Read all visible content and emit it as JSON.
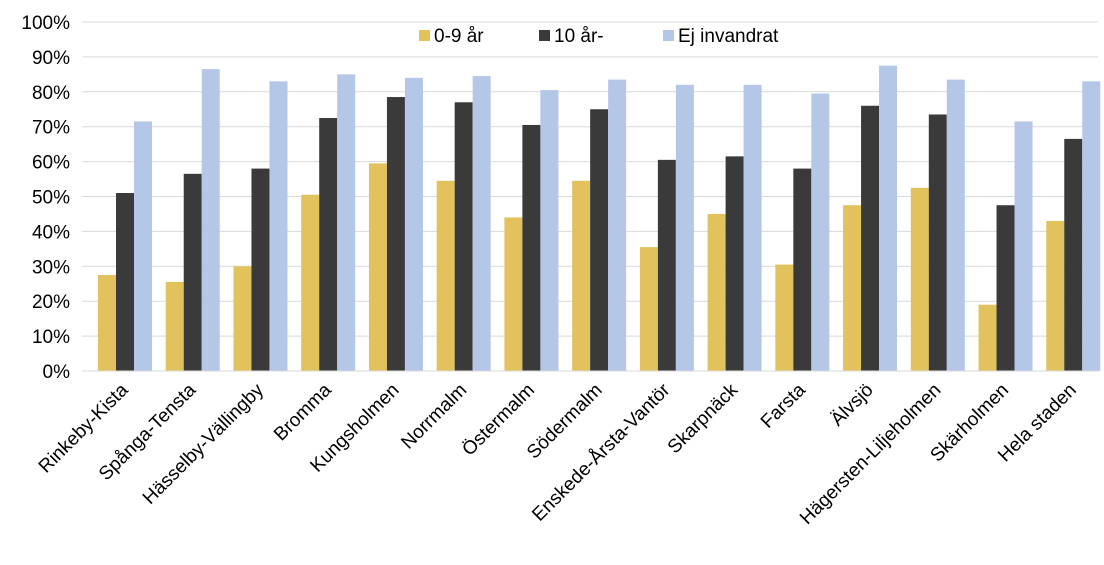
{
  "chart_data": {
    "type": "bar",
    "categories": [
      "Rinkeby-Kista",
      "Spånga-Tensta",
      "Hässelby-Vällingby",
      "Bromma",
      "Kungsholmen",
      "Norrmalm",
      "Östermalm",
      "Södermalm",
      "Enskede-Årsta-Vantör",
      "Skarpnäck",
      "Farsta",
      "Älvsjö",
      "Hägersten-Liljeholmen",
      "Skärholmen",
      "Hela staden"
    ],
    "series": [
      {
        "name": "0-9 år",
        "color": "#E2C25C",
        "values": [
          27.5,
          25.5,
          30,
          50.5,
          59.5,
          54.5,
          44,
          54.5,
          35.5,
          45,
          30.5,
          47.5,
          52.5,
          19,
          43
        ]
      },
      {
        "name": "10 år-",
        "color": "#3A3A3A",
        "values": [
          51,
          56.5,
          58,
          72.5,
          78.5,
          77,
          70.5,
          75,
          60.5,
          61.5,
          58,
          76,
          73.5,
          47.5,
          66.5
        ]
      },
      {
        "name": "Ej invandrat",
        "color": "#B4C7E7",
        "values": [
          71.5,
          86.5,
          83,
          85,
          84,
          84.5,
          80.5,
          83.5,
          82,
          82,
          79.5,
          87.5,
          83.5,
          71.5,
          83
        ]
      }
    ],
    "y_ticks": [
      "0%",
      "10%",
      "20%",
      "30%",
      "40%",
      "50%",
      "60%",
      "70%",
      "80%",
      "90%",
      "100%"
    ],
    "ylim": [
      0,
      100
    ],
    "grid": true,
    "legend_position": "top-center",
    "title": "",
    "xlabel": "",
    "ylabel": ""
  }
}
